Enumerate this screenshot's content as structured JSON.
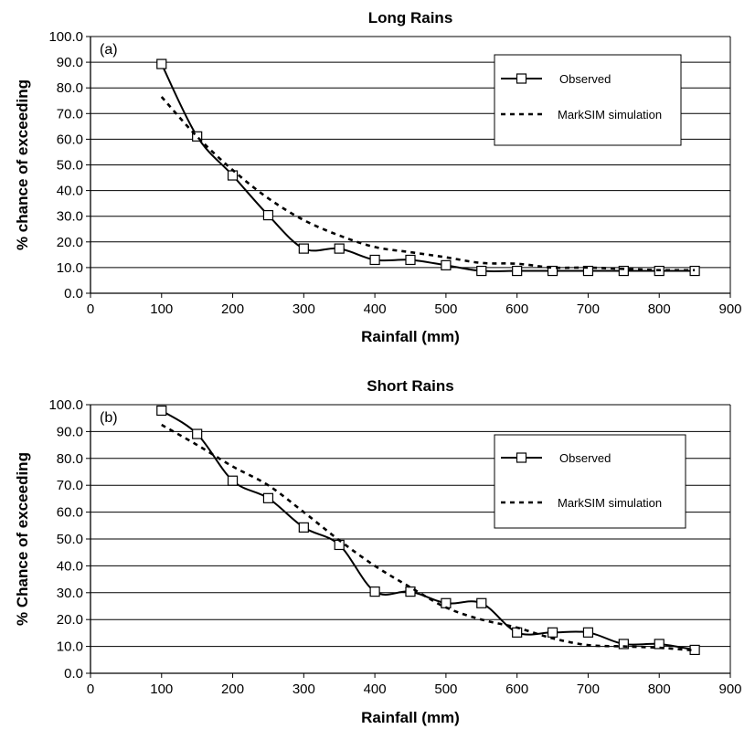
{
  "chart_data": [
    {
      "type": "line",
      "title": "Long Rains",
      "panel_label": "(a)",
      "xlabel": "Rainfall (mm)",
      "ylabel": "% chance of exceeding",
      "xlim": [
        0,
        900
      ],
      "ylim": [
        0,
        100
      ],
      "xticks": [
        0,
        100,
        200,
        300,
        400,
        500,
        600,
        700,
        800,
        900
      ],
      "yticks": [
        0,
        10,
        20,
        30,
        40,
        50,
        60,
        70,
        80,
        90,
        100
      ],
      "xtick_labels": [
        "0",
        "100",
        "200",
        "300",
        "400",
        "500",
        "600",
        "700",
        "800",
        "900"
      ],
      "ytick_labels": [
        "0.0",
        "10.0",
        "20.0",
        "30.0",
        "40.0",
        "50.0",
        "60.0",
        "70.0",
        "80.0",
        "90.0",
        "100.0"
      ],
      "grid": "horizontal",
      "legend_position": "top-right",
      "series": [
        {
          "name": "Observed",
          "style": "solid-square-markers",
          "x": [
            100,
            150,
            200,
            250,
            300,
            350,
            400,
            450,
            500,
            550,
            600,
            650,
            700,
            750,
            800,
            850
          ],
          "y": [
            89.3,
            61.1,
            45.9,
            30.4,
            17.4,
            17.4,
            13.0,
            13.0,
            10.9,
            8.7,
            8.7,
            8.7,
            8.7,
            8.7,
            8.7,
            8.7
          ]
        },
        {
          "name": "MarkSIM simulation",
          "style": "dotted",
          "x": [
            100,
            150,
            200,
            250,
            300,
            350,
            400,
            450,
            500,
            550,
            600,
            650,
            700,
            750,
            800,
            850
          ],
          "y": [
            76.5,
            61.0,
            48.0,
            37.0,
            28.5,
            22.5,
            18.0,
            16.0,
            14.0,
            11.8,
            11.5,
            10.0,
            10.0,
            9.5,
            9.0,
            9.0
          ]
        }
      ]
    },
    {
      "type": "line",
      "title": "Short Rains",
      "panel_label": "(b)",
      "xlabel": "Rainfall (mm)",
      "ylabel": "% Chance of exceeding",
      "xlim": [
        0,
        900
      ],
      "ylim": [
        0,
        100
      ],
      "xticks": [
        0,
        100,
        200,
        300,
        400,
        500,
        600,
        700,
        800,
        900
      ],
      "yticks": [
        0,
        10,
        20,
        30,
        40,
        50,
        60,
        70,
        80,
        90,
        100
      ],
      "xtick_labels": [
        "0",
        "100",
        "200",
        "300",
        "400",
        "500",
        "600",
        "700",
        "800",
        "900"
      ],
      "ytick_labels": [
        "0.0",
        "10.0",
        "20.0",
        "30.0",
        "40.0",
        "50.0",
        "60.0",
        "70.0",
        "80.0",
        "90.0",
        "100.0"
      ],
      "grid": "horizontal",
      "legend_position": "right",
      "series": [
        {
          "name": "Observed",
          "style": "solid-square-markers",
          "x": [
            100,
            150,
            200,
            250,
            300,
            350,
            400,
            450,
            500,
            550,
            600,
            650,
            700,
            750,
            800,
            850
          ],
          "y": [
            97.8,
            89.1,
            71.7,
            65.2,
            54.3,
            47.8,
            30.4,
            30.4,
            26.1,
            26.1,
            15.2,
            15.2,
            15.2,
            10.9,
            10.9,
            8.7
          ]
        },
        {
          "name": "MarkSIM simulation",
          "style": "dotted",
          "x": [
            100,
            150,
            200,
            250,
            300,
            350,
            400,
            450,
            500,
            550,
            600,
            650,
            700,
            750,
            800,
            850
          ],
          "y": [
            92.5,
            85.0,
            77.0,
            70.0,
            60.0,
            49.5,
            40.0,
            32.0,
            24.5,
            20.0,
            17.0,
            13.0,
            10.5,
            10.0,
            9.5,
            8.5
          ]
        }
      ]
    }
  ]
}
